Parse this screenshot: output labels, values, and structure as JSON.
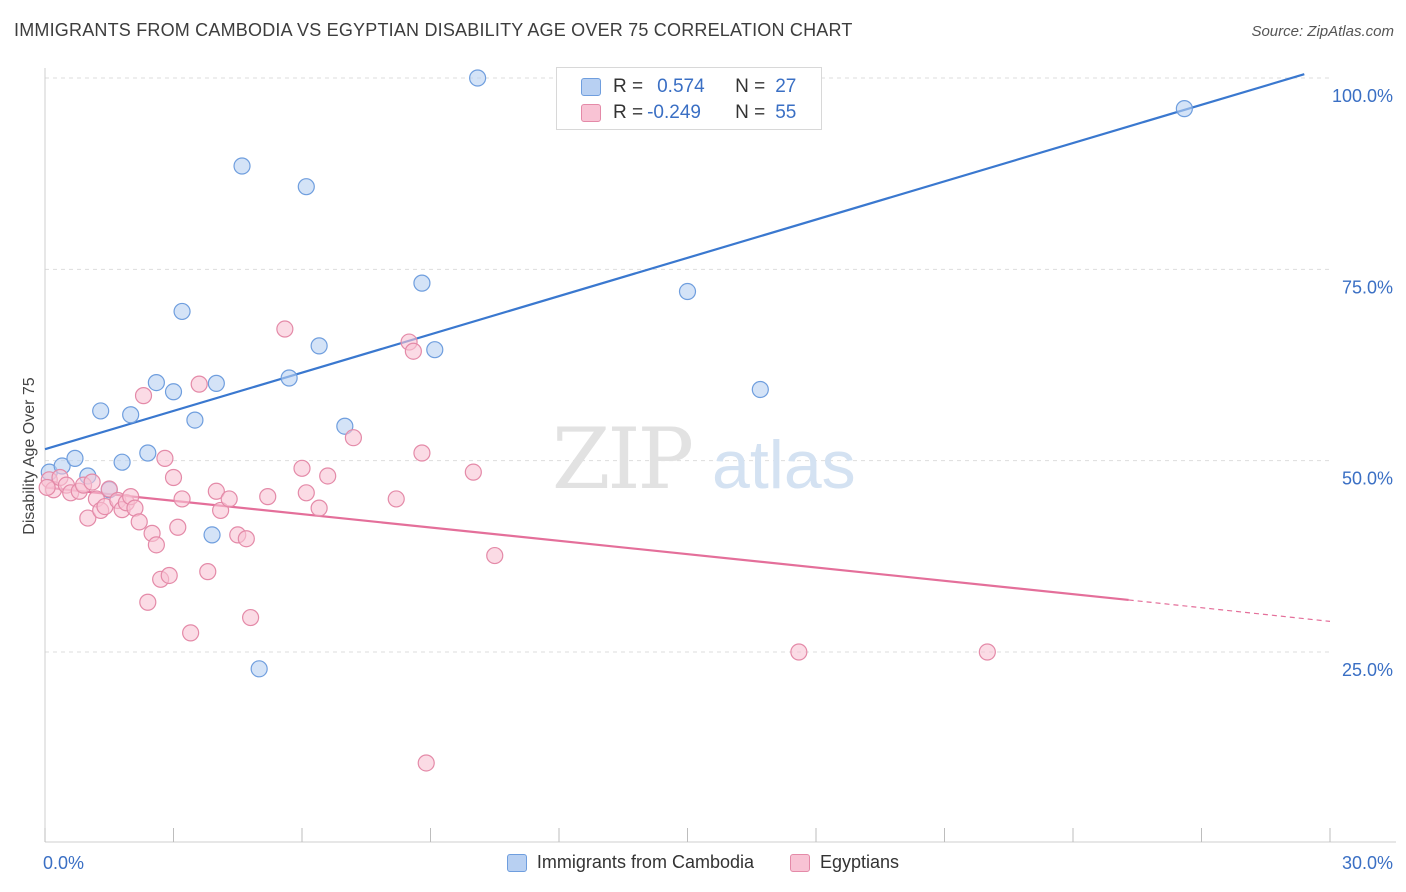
{
  "header": {
    "title": "IMMIGRANTS FROM CAMBODIA VS EGYPTIAN DISABILITY AGE OVER 75 CORRELATION CHART",
    "source": "Source: ZipAtlas.com"
  },
  "watermark": {
    "part1": "ZIP",
    "part2": "atlas"
  },
  "stats_legend": [
    {
      "r_label": "R =",
      "r_value": "0.574",
      "n_label": "N =",
      "n_value": "27",
      "color": "blue"
    },
    {
      "r_label": "R =",
      "r_value": "-0.249",
      "n_label": "N =",
      "n_value": "55",
      "color": "pink"
    }
  ],
  "colors": {
    "blue_fill": "#b8d0f2",
    "blue_stroke": "#6f9ede",
    "blue_line": "#3a78cf",
    "pink_fill": "#f8c3d4",
    "pink_stroke": "#e48aa8",
    "pink_line": "#e46f9a",
    "axis_label": "#3a6fc4",
    "grid": "#dddddd"
  },
  "chart_data": {
    "type": "scatter",
    "title": "IMMIGRANTS FROM CAMBODIA VS EGYPTIAN DISABILITY AGE OVER 75 CORRELATION CHART",
    "xlabel": "",
    "ylabel": "Disability Age Over 75",
    "xlim": [
      0,
      30
    ],
    "ylim": [
      0,
      103
    ],
    "x_tick_labels": [
      "0.0%",
      "30.0%"
    ],
    "y_ticks": [
      25,
      50,
      75,
      100
    ],
    "y_tick_labels": [
      "25.0%",
      "50.0%",
      "75.0%",
      "100.0%"
    ],
    "grid": true,
    "legend_position": "top-center",
    "series": [
      {
        "name": "Immigrants from Cambodia",
        "color": "blue",
        "points": [
          [
            0.1,
            48.5
          ],
          [
            0.4,
            49.3
          ],
          [
            0.7,
            50.3
          ],
          [
            1.0,
            48.0
          ],
          [
            1.3,
            56.5
          ],
          [
            1.5,
            46.2
          ],
          [
            1.8,
            49.8
          ],
          [
            2.0,
            56.0
          ],
          [
            2.4,
            51.0
          ],
          [
            2.6,
            60.2
          ],
          [
            3.0,
            59.0
          ],
          [
            3.2,
            69.5
          ],
          [
            3.5,
            55.3
          ],
          [
            3.9,
            40.3
          ],
          [
            4.0,
            60.1
          ],
          [
            4.6,
            88.5
          ],
          [
            5.0,
            22.8
          ],
          [
            5.7,
            60.8
          ],
          [
            6.1,
            85.8
          ],
          [
            6.4,
            65.0
          ],
          [
            7.0,
            54.5
          ],
          [
            8.8,
            73.2
          ],
          [
            9.1,
            64.5
          ],
          [
            10.1,
            100.0
          ],
          [
            15.0,
            72.1
          ],
          [
            16.7,
            59.3
          ],
          [
            26.6,
            96.0
          ]
        ],
        "trend": {
          "x": [
            0,
            29.4
          ],
          "y": [
            51.5,
            100.5
          ]
        }
      },
      {
        "name": "Egyptians",
        "color": "pink",
        "points": [
          [
            0.1,
            47.5
          ],
          [
            0.2,
            46.2
          ],
          [
            0.35,
            47.8
          ],
          [
            0.5,
            46.8
          ],
          [
            0.6,
            45.8
          ],
          [
            0.8,
            46.0
          ],
          [
            0.9,
            46.8
          ],
          [
            1.0,
            42.5
          ],
          [
            1.1,
            47.2
          ],
          [
            1.2,
            45.0
          ],
          [
            1.3,
            43.5
          ],
          [
            1.4,
            44.0
          ],
          [
            1.5,
            46.3
          ],
          [
            1.7,
            44.8
          ],
          [
            1.8,
            43.6
          ],
          [
            1.9,
            44.5
          ],
          [
            2.0,
            45.3
          ],
          [
            2.1,
            43.8
          ],
          [
            2.2,
            42.0
          ],
          [
            2.3,
            58.5
          ],
          [
            2.4,
            31.5
          ],
          [
            2.5,
            40.5
          ],
          [
            2.6,
            39.0
          ],
          [
            2.7,
            34.5
          ],
          [
            2.8,
            50.3
          ],
          [
            2.9,
            35.0
          ],
          [
            3.0,
            47.8
          ],
          [
            3.1,
            41.3
          ],
          [
            3.2,
            45.0
          ],
          [
            3.4,
            27.5
          ],
          [
            3.6,
            60.0
          ],
          [
            3.8,
            35.5
          ],
          [
            4.0,
            46.0
          ],
          [
            4.1,
            43.5
          ],
          [
            4.3,
            45.0
          ],
          [
            4.5,
            40.3
          ],
          [
            4.7,
            39.8
          ],
          [
            4.8,
            29.5
          ],
          [
            5.2,
            45.3
          ],
          [
            5.6,
            67.2
          ],
          [
            6.0,
            49.0
          ],
          [
            6.1,
            45.8
          ],
          [
            6.4,
            43.8
          ],
          [
            6.6,
            48.0
          ],
          [
            7.2,
            53.0
          ],
          [
            8.2,
            45.0
          ],
          [
            8.5,
            65.5
          ],
          [
            8.6,
            64.3
          ],
          [
            8.8,
            51.0
          ],
          [
            8.9,
            10.5
          ],
          [
            10.0,
            48.5
          ],
          [
            10.5,
            37.6
          ],
          [
            17.6,
            25.0
          ],
          [
            22.0,
            25.0
          ],
          [
            0.05,
            46.5
          ]
        ],
        "trend": {
          "x": [
            0,
            25.3
          ],
          "y": [
            46.5,
            31.8
          ]
        },
        "trend_dashed": {
          "x": [
            25.3,
            30
          ],
          "y": [
            31.8,
            29.0
          ]
        }
      }
    ]
  }
}
